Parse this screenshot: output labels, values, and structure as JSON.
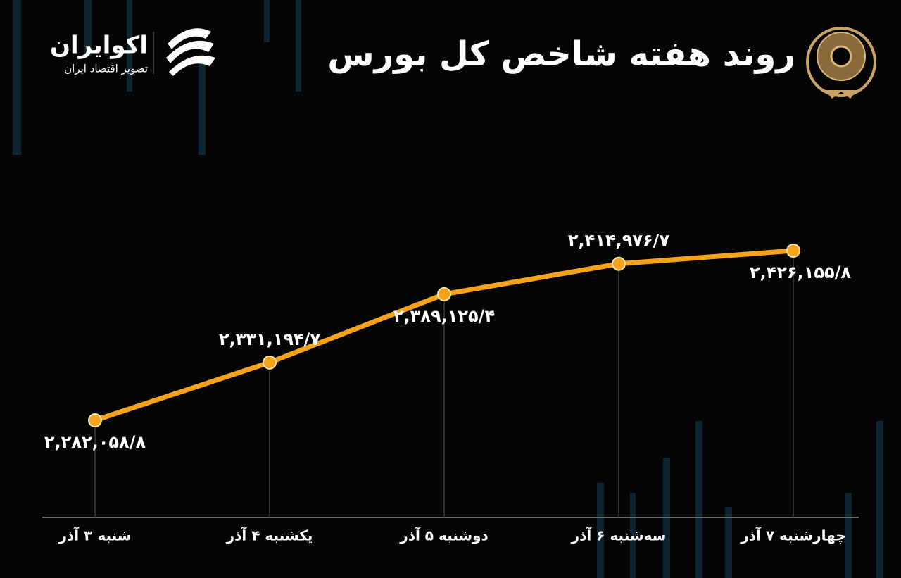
{
  "brand": {
    "name": "اکوایران",
    "tagline": "تصویر اقتصاد ایران"
  },
  "chart_data": {
    "type": "line",
    "title": "روند هفته شاخص کل بورس",
    "categories": [
      "شنبه ۳ آذر",
      "یکشنبه ۴ آذر",
      "دوشنبه ۵ آذر",
      "سه‌شنبه ۶ آذر",
      "چهارشنبه ۷ آذر"
    ],
    "values": [
      2282058.8,
      2331194.7,
      2389125.4,
      2414976.7,
      2426155.8
    ],
    "value_labels": [
      "۲,۲۸۲,۰۵۸/۸",
      "۲,۳۳۱,۱۹۴/۷",
      "۲,۳۸۹,۱۲۵/۴",
      "۲,۴۱۴,۹۷۶/۷",
      "۲,۴۲۶,۱۵۵/۸"
    ],
    "color": "#f5a31a"
  }
}
